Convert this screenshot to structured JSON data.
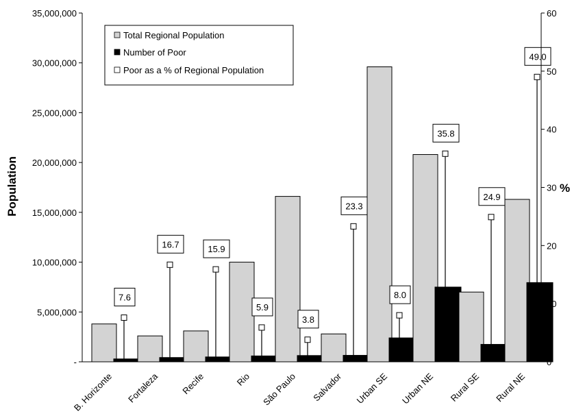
{
  "chart_data": {
    "type": "bar",
    "categories": [
      "B. Horizonte",
      "Fortaleza",
      "Recife",
      "Rio",
      "São Paulo",
      "Salvador",
      "Urban SE",
      "Urban NE",
      "Rural SE",
      "Rural NE"
    ],
    "series": [
      {
        "name": "Total Regional Population",
        "axis": "left",
        "color": "#d3d3d3",
        "values": [
          3800000,
          2600000,
          3100000,
          10000000,
          16600000,
          2800000,
          29600000,
          20800000,
          7000000,
          16300000
        ]
      },
      {
        "name": "Number of Poor",
        "axis": "left",
        "color": "#000000",
        "values": [
          290000,
          430000,
          490000,
          590000,
          630000,
          650000,
          2400000,
          7500000,
          1750000,
          7950000
        ]
      },
      {
        "name": "Poor as a % of Regional Population",
        "axis": "right",
        "marker": "square-open",
        "values": [
          7.6,
          16.7,
          15.9,
          5.9,
          3.8,
          23.3,
          8.0,
          35.8,
          24.9,
          49.0
        ]
      }
    ],
    "data_labels": [
      "7.6",
      "16.7",
      "15.9",
      "5.9",
      "3.8",
      "23.3",
      "8.0",
      "35.8",
      "24.9",
      "49.0"
    ],
    "ylabel": "Population",
    "y2label": "%",
    "ylim": [
      0,
      35000000
    ],
    "y2lim": [
      0,
      60
    ],
    "yticks": [
      "-",
      "5,000,000",
      "10,000,000",
      "15,000,000",
      "20,000,000",
      "25,000,000",
      "30,000,000",
      "35,000,000"
    ],
    "y2ticks": [
      "0",
      "10",
      "20",
      "30",
      "40",
      "50",
      "60"
    ],
    "grid": false,
    "legend_position": "top-left"
  }
}
